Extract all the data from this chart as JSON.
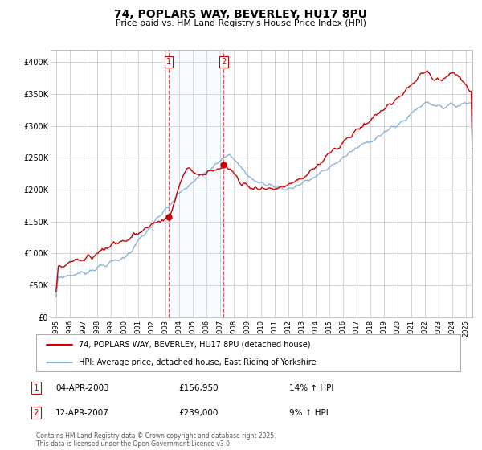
{
  "title": "74, POPLARS WAY, BEVERLEY, HU17 8PU",
  "subtitle": "Price paid vs. HM Land Registry's House Price Index (HPI)",
  "legend_line1": "74, POPLARS WAY, BEVERLEY, HU17 8PU (detached house)",
  "legend_line2": "HPI: Average price, detached house, East Riding of Yorkshire",
  "transaction1_label": "1",
  "transaction1_date": "04-APR-2003",
  "transaction1_price": "£156,950",
  "transaction1_hpi": "14% ↑ HPI",
  "transaction2_label": "2",
  "transaction2_date": "12-APR-2007",
  "transaction2_price": "£239,000",
  "transaction2_hpi": "9% ↑ HPI",
  "footer": "Contains HM Land Registry data © Crown copyright and database right 2025.\nThis data is licensed under the Open Government Licence v3.0.",
  "red_color": "#cc0000",
  "blue_color": "#7eadd4",
  "shade_color": "#ddeeff",
  "marker_color": "#cc0000",
  "marker1_x": 2003.27,
  "marker1_y": 156950,
  "marker2_x": 2007.28,
  "marker2_y": 239000,
  "vline1_x": 2003.27,
  "vline2_x": 2007.28,
  "ylim": [
    0,
    420000
  ],
  "xlim": [
    1994.6,
    2025.5
  ],
  "yticks": [
    0,
    50000,
    100000,
    150000,
    200000,
    250000,
    300000,
    350000,
    400000
  ],
  "ytick_labels": [
    "£0",
    "£50K",
    "£100K",
    "£150K",
    "£200K",
    "£250K",
    "£300K",
    "£350K",
    "£400K"
  ],
  "xticks": [
    1995,
    1996,
    1997,
    1998,
    1999,
    2000,
    2001,
    2002,
    2003,
    2004,
    2005,
    2006,
    2007,
    2008,
    2009,
    2010,
    2011,
    2012,
    2013,
    2014,
    2015,
    2016,
    2017,
    2018,
    2019,
    2020,
    2021,
    2022,
    2023,
    2024,
    2025
  ],
  "bg_color": "#ffffff",
  "plot_bg_color": "#ffffff",
  "grid_color": "#cccccc"
}
